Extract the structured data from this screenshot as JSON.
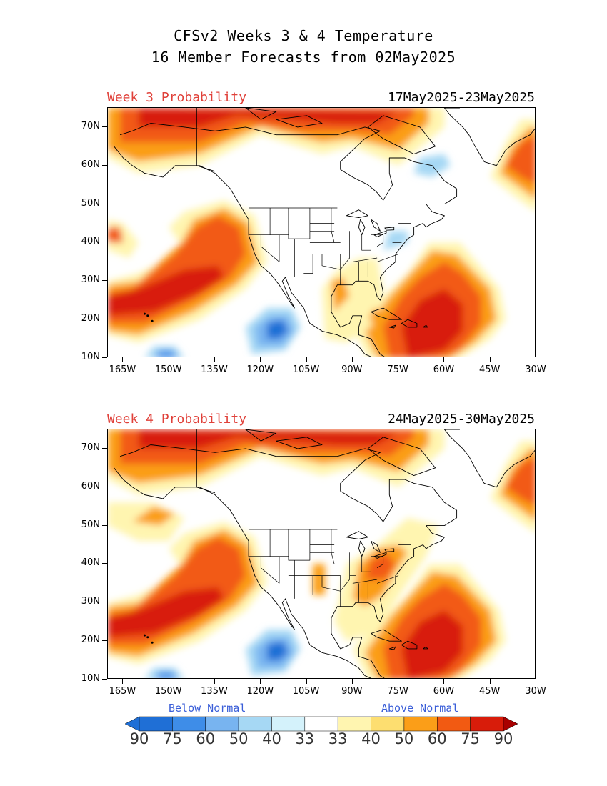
{
  "title_line1": "CFSv2 Weeks 3 & 4 Temperature",
  "title_line2": "16 Member Forecasts from 02May2025",
  "panels": [
    {
      "label": "Week 3 Probability",
      "dates": "17May2025-23May2025"
    },
    {
      "label": "Week 4 Probability",
      "dates": "24May2025-30May2025"
    }
  ],
  "y_ticks": [
    "70N",
    "60N",
    "50N",
    "40N",
    "30N",
    "20N",
    "10N"
  ],
  "x_ticks": [
    "165W",
    "150W",
    "135W",
    "120W",
    "105W",
    "90W",
    "75W",
    "60W",
    "45W",
    "30W"
  ],
  "legend": {
    "below_label": "Below Normal",
    "above_label": "Above Normal",
    "values": [
      "90",
      "75",
      "60",
      "50",
      "40",
      "33",
      "33",
      "40",
      "50",
      "60",
      "75",
      "90"
    ],
    "colors": {
      "below": [
        "#1f6fd6",
        "#3e8de8",
        "#78b4f0",
        "#a6d8f4",
        "#d4f2fb"
      ],
      "neutral": "#ffffff",
      "above": [
        "#fff5b0",
        "#fdde70",
        "#fb9e18",
        "#f25a12",
        "#d81c0a",
        "#a80000"
      ]
    }
  },
  "map": {
    "lon_range": [
      -170,
      -30
    ],
    "lat_range": [
      10,
      75
    ]
  }
}
